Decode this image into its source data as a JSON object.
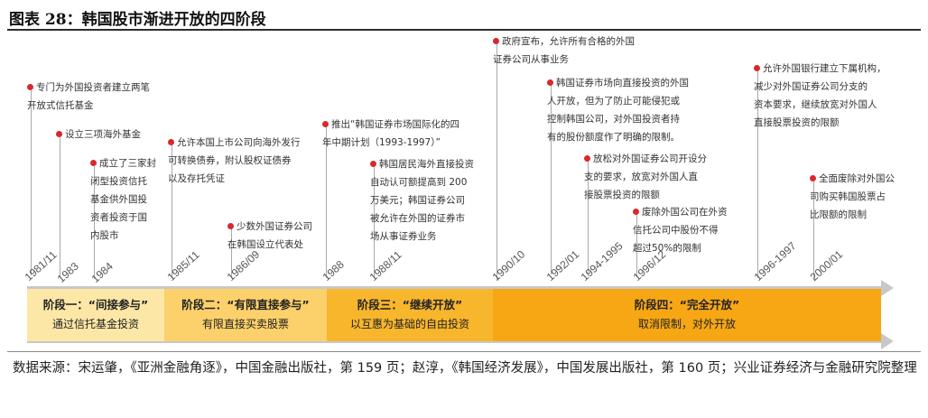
{
  "title": "图表 28：韩国股市渐进开放的四阶段",
  "timeline": [
    {
      "date": "1981/11",
      "event": "专门为外国投资者建立两笔\n开放式信托基金"
    },
    {
      "date": "1983",
      "event": "设立三项海外基金"
    },
    {
      "date": "1984",
      "event": "成立了三家封\n闭型投资信托\n基金供外国投\n资者投资于国\n内股市"
    },
    {
      "date": "1985/11",
      "event": "允许本国上市公司向海外发行\n可转换债券，附认股权证债券\n以及存托凭证"
    },
    {
      "date": "1986/09",
      "event": "少数外国证券公司\n在韩国设立代表处"
    },
    {
      "date": "1988",
      "event": "推出“韩国证券市场国际化的四\n年中期计划（1993-1997）”"
    },
    {
      "date": "1988/11",
      "event": "韩国居民海外直接投资\n自动认可额提高到 200\n万美元；韩国证券公司\n被允许在外国的证券市\n场从事证券业务"
    },
    {
      "date": "1990/10",
      "event": "政府宣布，允许所有合格的外国\n证券公司从事业务"
    },
    {
      "date": "1992/01",
      "event": "韩国证券市场向直接投资的外国\n人开放，但为了防止可能侵犯或\n控制韩国公司，对外国投资者持\n有的股份额度作了明确的限制。"
    },
    {
      "date": "1994-1995",
      "event": "放松对外国证券公司开设分\n支的要求，放宽对外国人直\n接股票投资的限额"
    },
    {
      "date": "1996/12",
      "event": "废除外国公司在外资\n信托公司中股份不得\n超过50%的限制"
    },
    {
      "date": "1996-1997",
      "event": "允许外国银行建立下属机构，\n减少对外国证券公司分支的\n资本要求，继续放宽对外国人\n直接股票投资的限额"
    },
    {
      "date": "2000/01",
      "event": "全面废除对外国公\n司购买韩国股票占\n比限额的限制"
    }
  ],
  "stages": [
    {
      "name": "阶段一：“间接参与”",
      "desc": "通过信托基金投资"
    },
    {
      "name": "阶段二：“有限直接参与”",
      "desc": "有限直接买卖股票"
    },
    {
      "name": "阶段三：“继续开放”",
      "desc": "以互惠为基础的自由投资"
    },
    {
      "name": "阶段四：“完全开放”",
      "desc": "取消限制，对外开放"
    }
  ],
  "stage_colors": [
    "#fde7a6",
    "#fcd06a",
    "#f7b62c",
    "#f7a714"
  ],
  "marker_color": "#d9282c",
  "source": "数据来源：宋运肇，《亚洲金融角逐》，中国金融出版社，第 159 页；赵淳，《韩国经济发展》，中国发展出版社，第 160 页；兴业证券经济与金融研究院整理"
}
